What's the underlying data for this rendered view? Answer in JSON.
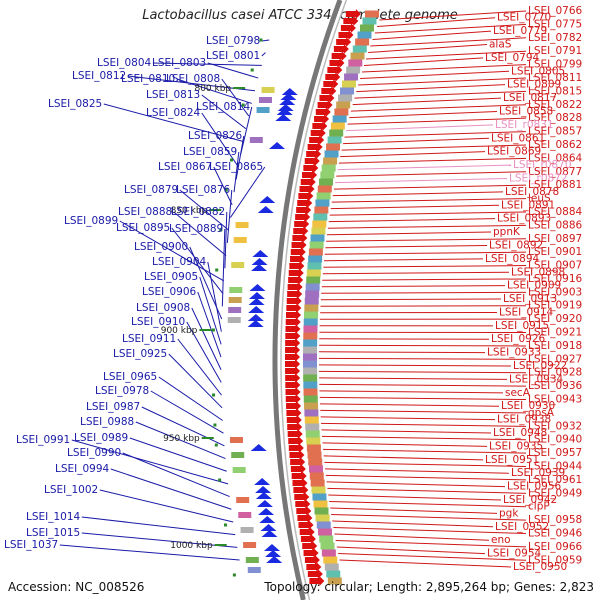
{
  "title": "Lactobacillus casei ATCC 334, complete genome",
  "accession": "Accession: NC_008526",
  "summary": "Topology: circular; Length: 2,895,264 bp; Genes: 2,823",
  "colors": {
    "left_label": "#1a1aa8",
    "right_label": "#d01818",
    "rna_label": "#e890c0",
    "backbone": "#777777",
    "tick": "#2a8a2a"
  },
  "ticks": [
    {
      "label": "800 kbp"
    },
    {
      "label": "850 kbp"
    },
    {
      "label": "900 kbp"
    },
    {
      "label": "950 kbp"
    },
    {
      "label": "1000 kbp"
    }
  ],
  "left_labels": [
    "LSEI_0798",
    "LSEI_0801",
    "LSEI_0804",
    "LSEI_0803",
    "LSEI_0812",
    "LSEI_0810",
    "LSEI_0808",
    "LSEI_0813",
    "LSEI_0825",
    "LSEI_0814",
    "LSEI_0824",
    "LSEI_0826",
    "LSEI_0859",
    "LSEI_0867",
    "LSEI_0865",
    "LSEI_0879",
    "LSEI_0876",
    "LSEI_0888",
    "LSEI_0882",
    "LSEI_0899",
    "LSEI_0895",
    "LSEI_0889",
    "LSEI_0900",
    "LSEI_0904",
    "LSEI_0905",
    "LSEI_0906",
    "LSEI_0908",
    "LSEI_0910",
    "LSEI_0911",
    "LSEI_0925",
    "LSEI_0965",
    "LSEI_0978",
    "LSEI_0987",
    "LSEI_0988",
    "LSEI_0989",
    "LSEI_0991",
    "LSEI_0990",
    "LSEI_0994",
    "LSEI_1002",
    "LSEI_1014",
    "LSEI_1015",
    "LSEI_1037"
  ],
  "right_labels": [
    "LSEI_0766",
    "LSEI_0770",
    "LSEI_0775",
    "LSEI_0779",
    "LSEI_0782",
    "alaS",
    "LSEI_0791",
    "LSEI_0794",
    "LSEI_0799",
    "LSEI_0805",
    "LSEI_0811",
    "LSEI_0809",
    "LSEI_0815",
    "LSEI_0817",
    "LSEI_0822",
    "LSEI_0858",
    "LSEI_0828",
    "LSEI_r0831",
    "LSEI_0857",
    "LSEI_0861",
    "LSEI_0862",
    "LSEI_0869",
    "LSEI_0864",
    "LSEI_r0870",
    "LSEI_0877",
    "LSEI_r0872",
    "LSEI_0881",
    "LSEI_0878",
    "leuS",
    "LSEI_0891",
    "LSEI_0884",
    "LSEI_0893",
    "LSEI_0886",
    "ppnK",
    "LSEI_0897",
    "LSEI_0892",
    "LSEI_0901",
    "LSEI_0894",
    "LSEI_0907",
    "LSEI_0898",
    "LSEI_0916",
    "LSEI_0909",
    "LSEI_0903",
    "LSEI_0913",
    "LSEI_0919",
    "LSEI_0914",
    "LSEI_0920",
    "LSEI_0915",
    "LSEI_0921",
    "LSEI_0926",
    "LSEI_0918",
    "LSEI_0933",
    "LSEI_0927",
    "LSEI_0922",
    "LSEI_0928",
    "LSEI_0934",
    "LSEI_0936",
    "secA",
    "LSEI_0943",
    "LSEI_0930",
    "gpsA",
    "LSEI_0938",
    "LSEI_0932",
    "LSEI_0948",
    "LSEI_0940",
    "LSEI_0935",
    "LSEI_0957",
    "LSEI_0951",
    "LSEI_0944",
    "LSEI_0939",
    "LSEI_0961",
    "LSEI_0956",
    "LSEI_0949",
    "LSEI_0942",
    "clpP",
    "pgk",
    "LSEI_0958",
    "LSEI_0952",
    "LSEI_0946",
    "eno",
    "LSEI_0966",
    "LSEI_0954",
    "LSEI_0959",
    "LSEI_0950"
  ],
  "rna_labels": [
    "LSEI_r0831",
    "LSEI_r0870",
    "LSEI_r0872"
  ]
}
